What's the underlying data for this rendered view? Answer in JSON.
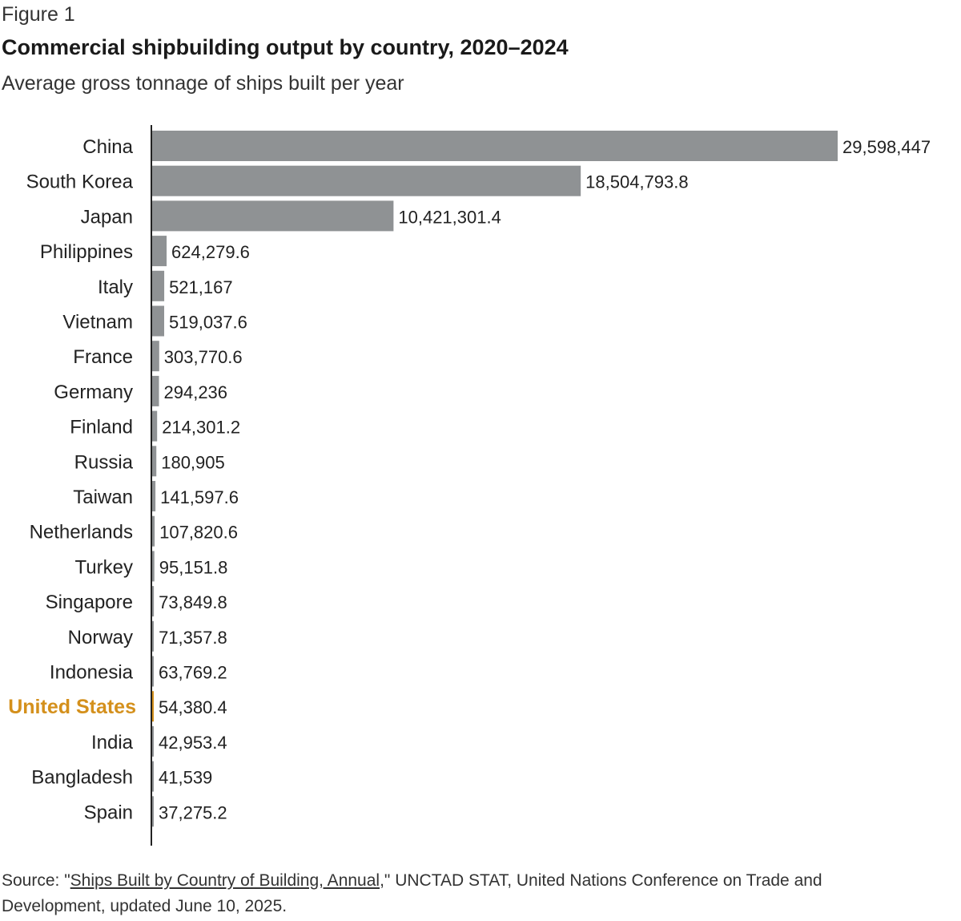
{
  "figure_label": "Figure 1",
  "chart_data": {
    "type": "bar",
    "orientation": "horizontal",
    "title": "Commercial shipbuilding output by country, 2020–2024",
    "subtitle": "Average gross tonnage of ships built per year",
    "categories": [
      "China",
      "South Korea",
      "Japan",
      "Philippines",
      "Italy",
      "Vietnam",
      "France",
      "Germany",
      "Finland",
      "Russia",
      "Taiwan",
      "Netherlands",
      "Turkey",
      "Singapore",
      "Norway",
      "Indonesia",
      "United States",
      "India",
      "Bangladesh",
      "Spain"
    ],
    "values": [
      29598447,
      18504793.8,
      10421301.4,
      624279.6,
      521167,
      519037.6,
      303770.6,
      294236,
      214301.2,
      180905,
      141597.6,
      107820.6,
      95151.8,
      73849.8,
      71357.8,
      63769.2,
      54380.4,
      42953.4,
      41539,
      37275.2
    ],
    "value_labels": [
      "29,598,447",
      "18,504,793.8",
      "10,421,301.4",
      "624,279.6",
      "521,167",
      "519,037.6",
      "303,770.6",
      "294,236",
      "214,301.2",
      "180,905",
      "141,597.6",
      "107,820.6",
      "95,151.8",
      "73,849.8",
      "71,357.8",
      "63,769.2",
      "54,380.4",
      "42,953.4",
      "41,539",
      "37,275.2"
    ],
    "highlight": "United States",
    "colors": {
      "bar": "#8f9294",
      "highlight": "#d4901c",
      "axis": "#222222",
      "text": "#222222"
    },
    "grid": false,
    "legend": "none"
  },
  "source": {
    "prefix": "Source: \"",
    "link_text": "Ships Built by Country of Building, Annual",
    "suffix": ",\" UNCTAD STAT, United Nations Conference on Trade and Development, updated June 10, 2025."
  }
}
